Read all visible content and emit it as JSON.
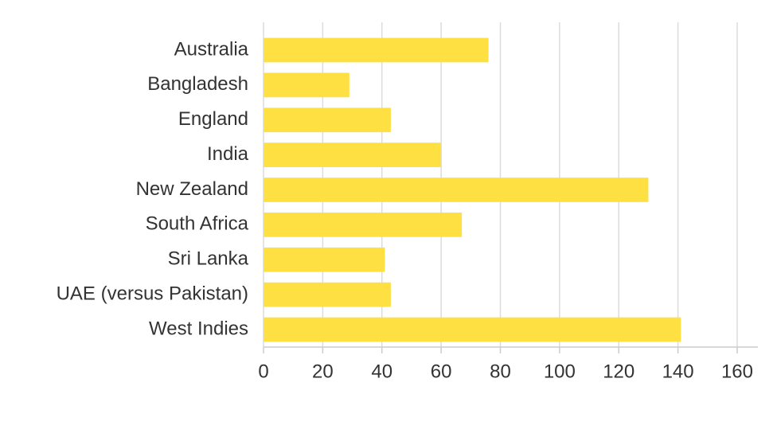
{
  "chart_data": {
    "type": "bar",
    "orientation": "horizontal",
    "categories": [
      "Australia",
      "Bangladesh",
      "England",
      "India",
      "New Zealand",
      "South Africa",
      "Sri Lanka",
      "UAE (versus Pakistan)",
      "West Indies"
    ],
    "values": [
      76,
      29,
      43,
      60,
      130,
      67,
      41,
      43,
      141
    ],
    "color": "#ffe042",
    "xlim": [
      0,
      167
    ],
    "xticks": [
      0,
      20,
      40,
      60,
      80,
      100,
      120,
      140,
      160
    ],
    "grid": true
  }
}
